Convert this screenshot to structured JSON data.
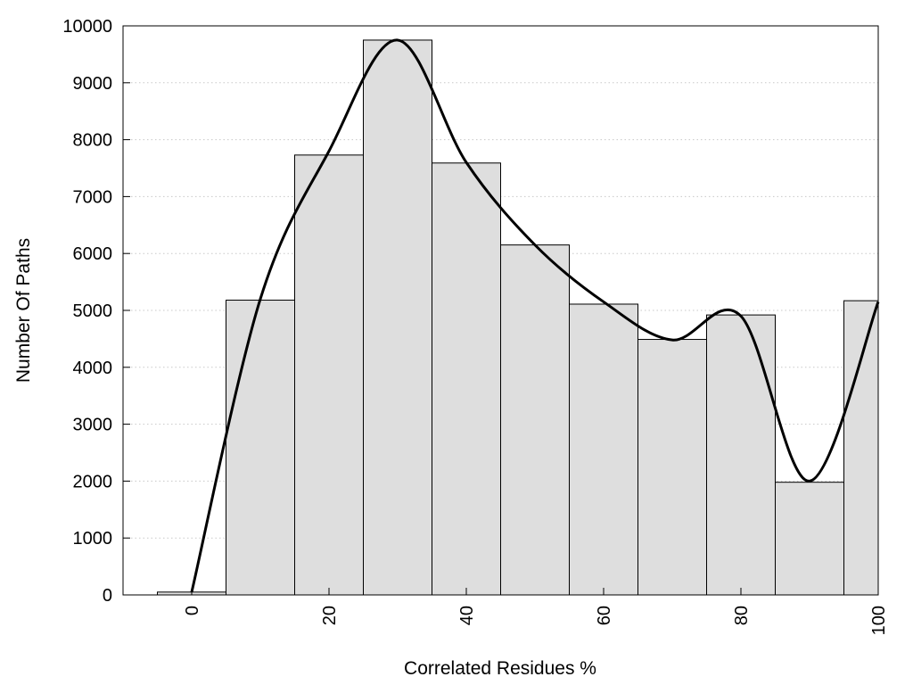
{
  "chart_data": {
    "type": "bar",
    "x": [
      0,
      10,
      20,
      30,
      40,
      50,
      60,
      70,
      80,
      90,
      100
    ],
    "values": [
      50,
      5180,
      7730,
      9750,
      7590,
      6150,
      5110,
      4490,
      4920,
      1980,
      5170
    ],
    "bin_width": 10,
    "xlim": [
      -10,
      100
    ],
    "ylim": [
      0,
      10000
    ],
    "xticks": [
      0,
      20,
      40,
      60,
      80,
      100
    ],
    "yticks": [
      0,
      1000,
      2000,
      3000,
      4000,
      5000,
      6000,
      7000,
      8000,
      9000,
      10000
    ],
    "xlabel": "Correlated Residues %",
    "ylabel": "Number Of Paths",
    "grid": "horizontal-dotted",
    "legend": "none",
    "curve": {
      "x": [
        0,
        10,
        20,
        30,
        40,
        50,
        60,
        70,
        80,
        90,
        100
      ],
      "y": [
        50,
        5200,
        7800,
        9750,
        7600,
        6150,
        5150,
        4480,
        4900,
        2000,
        5150
      ]
    },
    "colors": {
      "bar_fill": "#dedede",
      "bar_stroke": "#000000",
      "curve": "#000000",
      "grid": "#c8c8c8"
    }
  }
}
